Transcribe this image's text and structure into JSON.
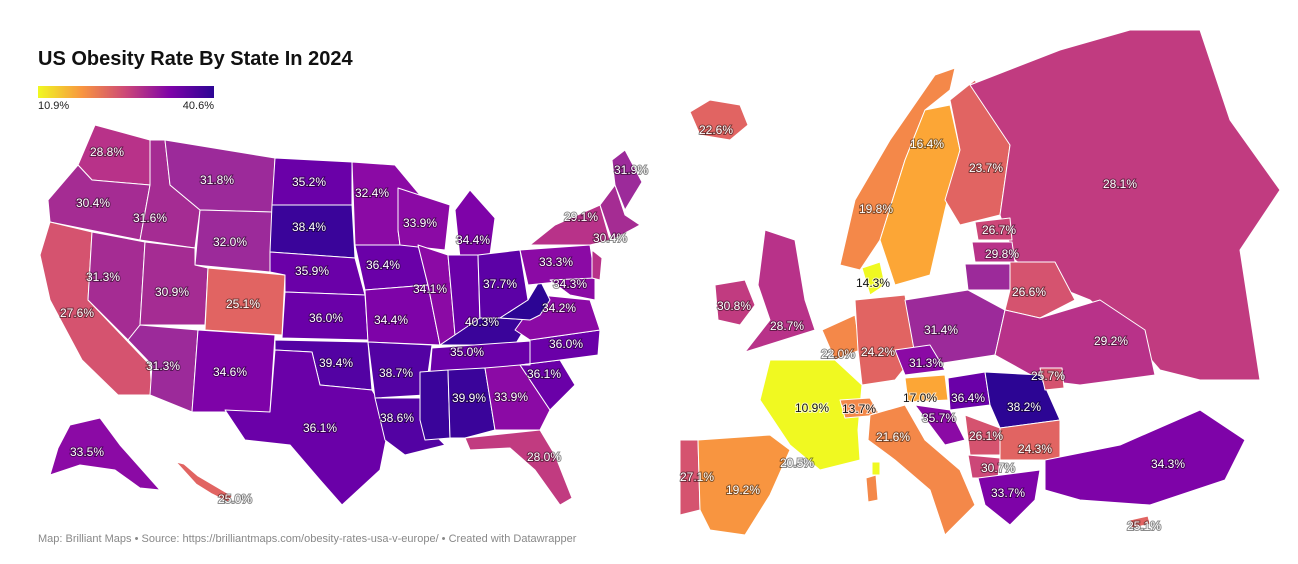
{
  "title": "US Obesity Rate By State In 2024",
  "legend": {
    "min": "10.9%",
    "max": "40.6%",
    "min_color": "#f0f921",
    "mid_color": "#cc4778",
    "max_color": "#2c0594"
  },
  "footer": "Map: Brilliant Maps • Source: https://brilliantmaps.com/obesity-rates-usa-v-europe/ • Created with Datawrapper",
  "us_labels": [
    "28.8%",
    "30.4%",
    "31.6%",
    "31.8%",
    "35.2%",
    "32.4%",
    "33.9%",
    "34.4%",
    "31.9%",
    "29.1%",
    "30.4%",
    "38.4%",
    "32.0%",
    "31.3%",
    "27.6%",
    "30.9%",
    "25.1%",
    "35.9%",
    "36.4%",
    "34.1%",
    "37.7%",
    "33.3%",
    "34.3%",
    "36.0%",
    "34.4%",
    "40.3%",
    "34.2%",
    "31.3%",
    "34.6%",
    "39.4%",
    "38.7%",
    "35.0%",
    "36.0%",
    "36.1%",
    "39.9%",
    "33.9%",
    "38.6%",
    "36.1%",
    "28.0%",
    "33.5%",
    "25.0%"
  ],
  "europe_labels": [
    "22.6%",
    "16.4%",
    "23.7%",
    "28.1%",
    "19.8%",
    "26.7%",
    "29.8%",
    "14.3%",
    "26.6%",
    "30.8%",
    "28.7%",
    "31.4%",
    "29.2%",
    "22.0%",
    "24.2%",
    "31.3%",
    "25.7%",
    "10.9%",
    "13.7%",
    "17.0%",
    "36.4%",
    "38.2%",
    "35.7%",
    "21.6%",
    "26.1%",
    "24.3%",
    "30.7%",
    "27.1%",
    "19.2%",
    "20.5%",
    "34.3%",
    "33.7%",
    "25.1%"
  ]
}
